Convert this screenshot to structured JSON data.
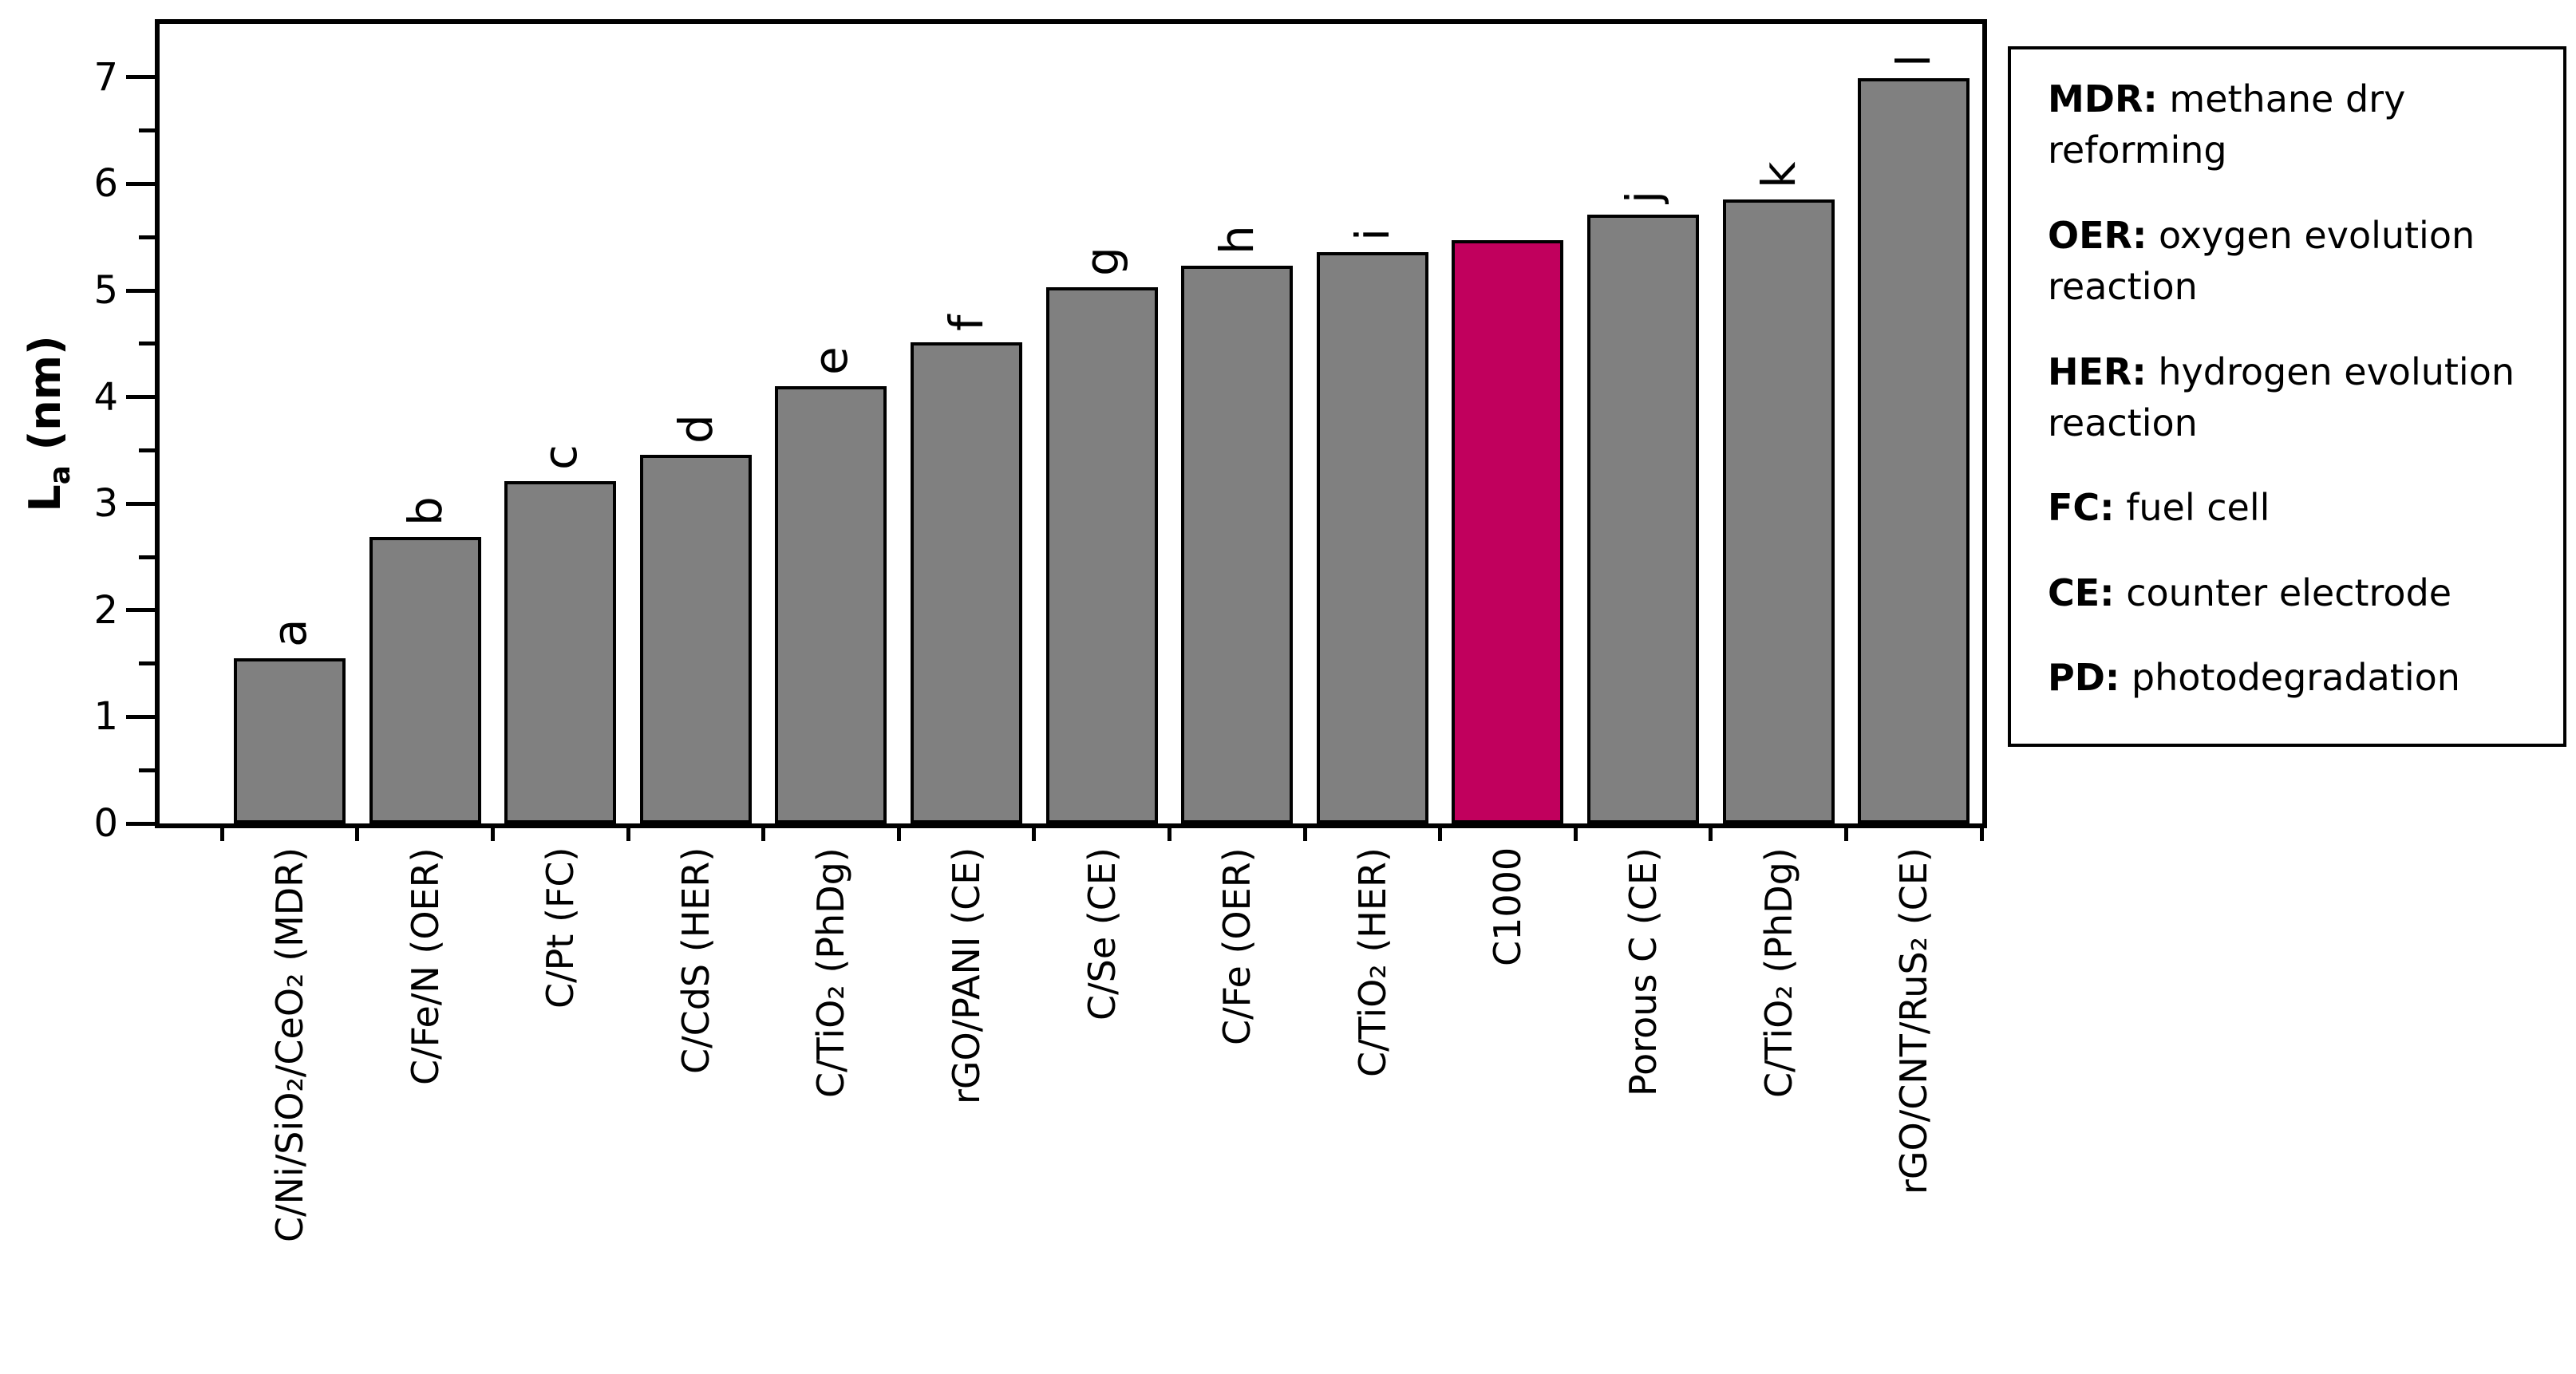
{
  "figure": {
    "background": "#FFFFFF"
  },
  "chart_data": {
    "type": "bar",
    "title": "",
    "xlabel": "",
    "ylabel": {
      "prefix": "L",
      "sub": "a",
      "suffix": " (nm)"
    },
    "ylim": [
      0,
      7.5
    ],
    "yticks_major": [
      0,
      1,
      2,
      3,
      4,
      5,
      6,
      7
    ],
    "ytick_minor_step": 0.5,
    "grid": false,
    "legend_position": "outside-right",
    "bar_color_default": "#808080",
    "bar_border_color": "#000000",
    "highlight_color": "#C1005D",
    "highlight_index": 9,
    "highlight_category": "C1000",
    "categories": [
      "C/Ni/SiO₂/CeO₂ (MDR)",
      "C/Fe/N (OER)",
      "C/Pt (FC)",
      "C/CdS (HER)",
      "C/TiO₂ (PhDg)",
      "rGO/PANI (CE)",
      "C/Se (CE)",
      "C/Fe (OER)",
      "C/TiO₂ (HER)",
      "C1000",
      "Porous C (CE)",
      "C/TiO₂ (PhDg)",
      "rGO/CNT/RuS₂ (CE)"
    ],
    "values": [
      1.55,
      2.69,
      3.21,
      3.46,
      4.1,
      4.51,
      5.03,
      5.23,
      5.36,
      5.47,
      5.71,
      5.85,
      6.99
    ],
    "point_labels": [
      "a",
      "b",
      "c",
      "d",
      "e",
      "f",
      "g",
      "h",
      "i",
      "",
      "j",
      "k",
      "l"
    ]
  },
  "legend": {
    "entries": [
      {
        "abbr": "MDR:",
        "definition": "methane dry reforming"
      },
      {
        "abbr": "OER:",
        "definition": "oxygen evolution reaction"
      },
      {
        "abbr": "HER:",
        "definition": "hydrogen evolution reaction"
      },
      {
        "abbr": "FC:",
        "definition": "fuel cell"
      },
      {
        "abbr": "CE:",
        "definition": "counter electrode"
      },
      {
        "abbr": "PD:",
        "definition": "photodegradation"
      }
    ]
  }
}
